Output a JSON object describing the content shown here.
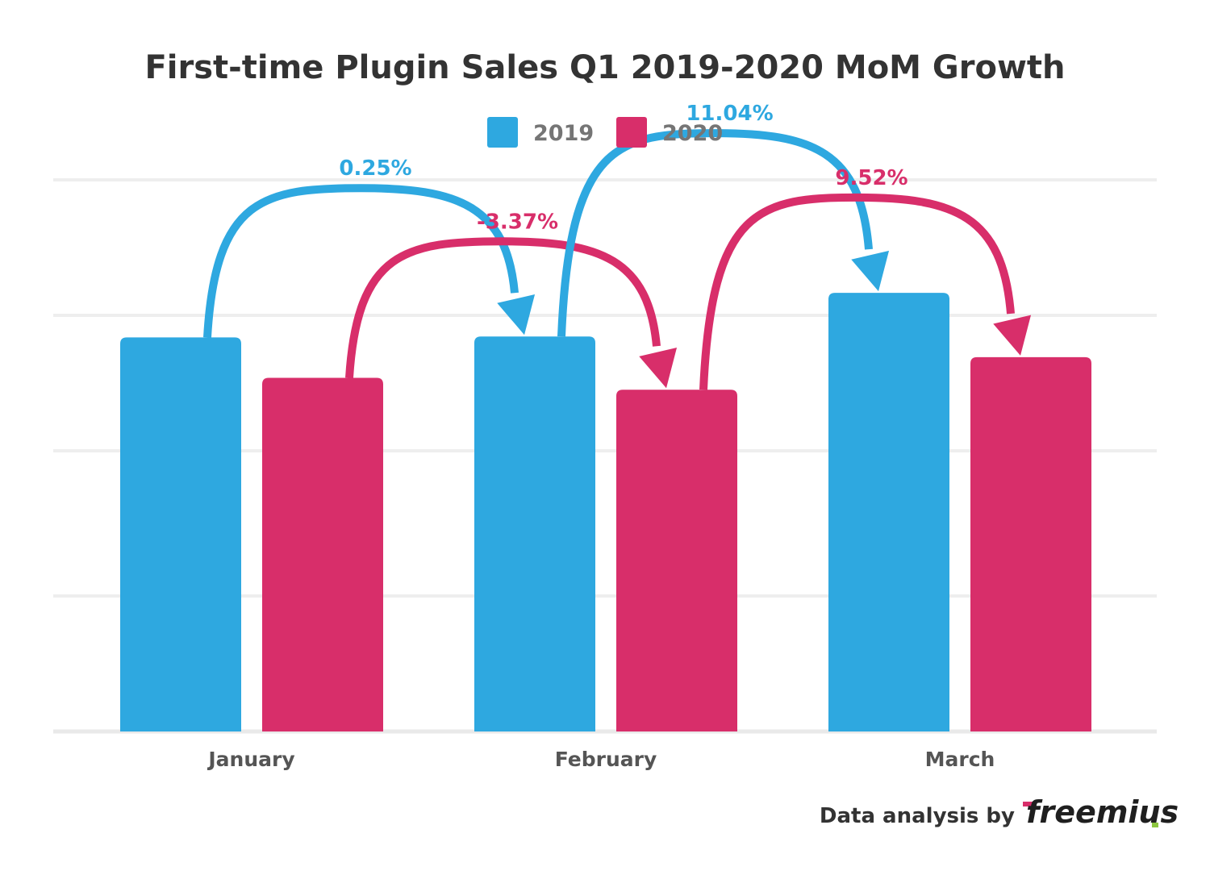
{
  "chart_data": {
    "type": "bar",
    "title": "First-time Plugin Sales Q1 2019-2020 MoM Growth",
    "categories": [
      "January",
      "February",
      "March"
    ],
    "series": [
      {
        "name": "2019",
        "color": "#2ea8e0",
        "values": [
          100,
          100.25,
          111.32
        ]
      },
      {
        "name": "2020",
        "color": "#d82e6a",
        "values": [
          89.75,
          86.73,
          94.99
        ]
      }
    ],
    "growth_labels": [
      {
        "series": 0,
        "from": 0,
        "to": 1,
        "text": "0.25%"
      },
      {
        "series": 1,
        "from": 0,
        "to": 1,
        "text": "-3.37%"
      },
      {
        "series": 0,
        "from": 1,
        "to": 2,
        "text": "11.04%"
      },
      {
        "series": 1,
        "from": 1,
        "to": 2,
        "text": "9.52%"
      }
    ],
    "ylim": [
      0,
      140
    ],
    "grid": true,
    "y_axis_labels": false,
    "legend_position": "top-center",
    "xlabel": "",
    "ylabel": ""
  },
  "credit": {
    "prefix": "Data analysis by",
    "brand": "freemius",
    "brand_accent_color": "#d82e6a",
    "brand_s_color": "#8dc63f"
  },
  "colors": {
    "grid": "#eeeeee",
    "baseline": "#e9e9e9"
  }
}
